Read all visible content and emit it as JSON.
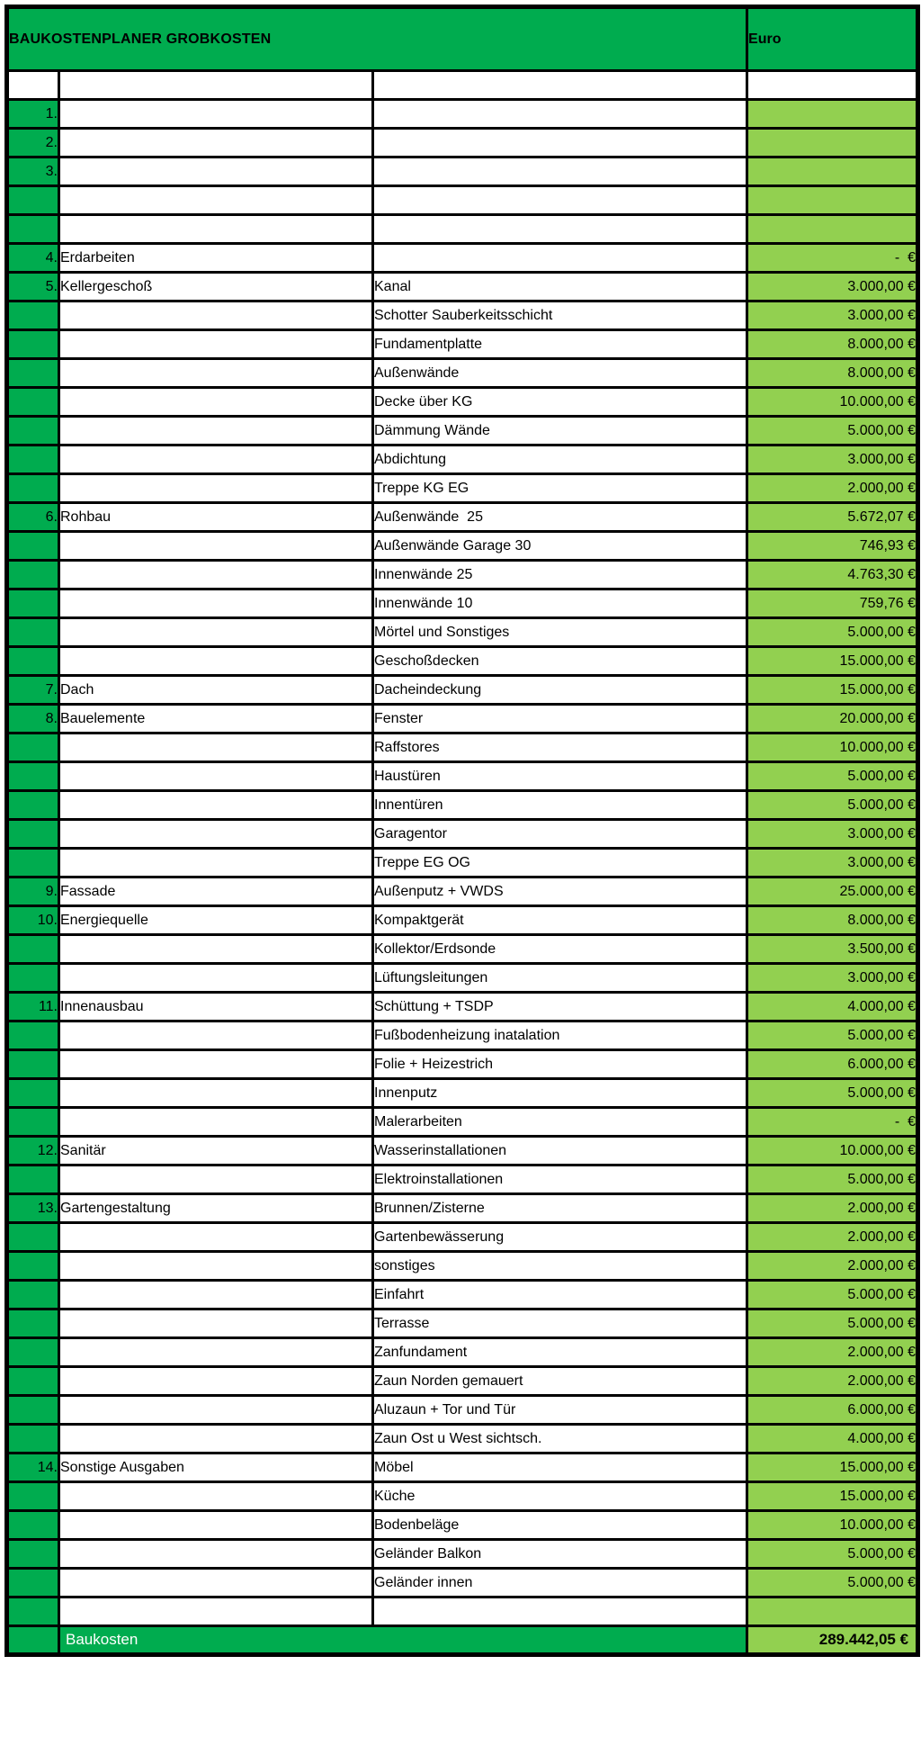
{
  "header": {
    "title": "BAUKOSTENPLANER GROBKOSTEN",
    "currency_label": "Euro"
  },
  "colors": {
    "dark_green": "#00ac4f",
    "light_green": "#92d050",
    "border": "#000000",
    "header_text": "#ffffff",
    "body_text": "#000000"
  },
  "rows": [
    {
      "num": "",
      "category": "",
      "item": "",
      "value": "",
      "white_num": true,
      "white_value": true
    },
    {
      "num": "1.",
      "category": "",
      "item": "",
      "value": ""
    },
    {
      "num": "2.",
      "category": "",
      "item": "",
      "value": ""
    },
    {
      "num": "3.",
      "category": "",
      "item": "",
      "value": ""
    },
    {
      "num": "",
      "category": "",
      "item": "",
      "value": ""
    },
    {
      "num": "",
      "category": "",
      "item": "",
      "value": ""
    },
    {
      "num": "4.",
      "category": "Erdarbeiten",
      "item": "",
      "value": "-  €"
    },
    {
      "num": "5.",
      "category": "Kellergeschoß",
      "item": "Kanal",
      "value": "3.000,00 €"
    },
    {
      "num": "",
      "category": "",
      "item": "Schotter Sauberkeitsschicht",
      "value": "3.000,00 €"
    },
    {
      "num": "",
      "category": "",
      "item": "Fundamentplatte",
      "value": "8.000,00 €"
    },
    {
      "num": "",
      "category": "",
      "item": "Außenwände",
      "value": "8.000,00 €"
    },
    {
      "num": "",
      "category": "",
      "item": "Decke über KG",
      "value": "10.000,00 €"
    },
    {
      "num": "",
      "category": "",
      "item": "Dämmung Wände",
      "value": "5.000,00 €"
    },
    {
      "num": "",
      "category": "",
      "item": "Abdichtung",
      "value": "3.000,00 €"
    },
    {
      "num": "",
      "category": "",
      "item": "Treppe KG EG",
      "value": "2.000,00 €"
    },
    {
      "num": "6.",
      "category": "Rohbau",
      "item": "Außenwände  25",
      "value": "5.672,07 €"
    },
    {
      "num": "",
      "category": "",
      "item": "Außenwände Garage 30",
      "value": "746,93 €"
    },
    {
      "num": "",
      "category": "",
      "item": "Innenwände 25",
      "value": "4.763,30 €"
    },
    {
      "num": "",
      "category": "",
      "item": "Innenwände 10",
      "value": "759,76 €"
    },
    {
      "num": "",
      "category": "",
      "item": "Mörtel und Sonstiges",
      "value": "5.000,00 €"
    },
    {
      "num": "",
      "category": "",
      "item": "Geschoßdecken",
      "value": "15.000,00 €"
    },
    {
      "num": "7.",
      "category": "Dach",
      "item": "Dacheindeckung",
      "value": "15.000,00 €"
    },
    {
      "num": "8.",
      "category": "Bauelemente",
      "item": "Fenster",
      "value": "20.000,00 €"
    },
    {
      "num": "",
      "category": "",
      "item": "Raffstores",
      "value": "10.000,00 €"
    },
    {
      "num": "",
      "category": "",
      "item": "Haustüren",
      "value": "5.000,00 €"
    },
    {
      "num": "",
      "category": "",
      "item": "Innentüren",
      "value": "5.000,00 €"
    },
    {
      "num": "",
      "category": "",
      "item": "Garagentor",
      "value": "3.000,00 €"
    },
    {
      "num": "",
      "category": "",
      "item": "Treppe EG OG",
      "value": "3.000,00 €"
    },
    {
      "num": "9.",
      "category": "Fassade",
      "item": "Außenputz + VWDS",
      "value": "25.000,00 €"
    },
    {
      "num": "10.",
      "category": "Energiequelle",
      "item": "Kompaktgerät",
      "value": "8.000,00 €"
    },
    {
      "num": "",
      "category": "",
      "item": "Kollektor/Erdsonde",
      "value": "3.500,00 €"
    },
    {
      "num": "",
      "category": "",
      "item": "Lüftungsleitungen",
      "value": "3.000,00 €"
    },
    {
      "num": "11.",
      "category": "Innenausbau",
      "item": "Schüttung + TSDP",
      "value": "4.000,00 €",
      "merge_item_below": true
    },
    {
      "num": "",
      "category": "",
      "item": "Fußbodenheizung inatalation",
      "value": "5.000,00 €"
    },
    {
      "num": "",
      "category": "",
      "item": "Folie + Heizestrich",
      "value": "6.000,00 €"
    },
    {
      "num": "",
      "category": "",
      "item": "Innenputz",
      "value": "5.000,00 €"
    },
    {
      "num": "",
      "category": "",
      "item": "Malerarbeiten",
      "value": "-  €"
    },
    {
      "num": "12.",
      "category": "Sanitär",
      "item": "Wasserinstallationen",
      "value": "10.000,00 €"
    },
    {
      "num": "",
      "category": "",
      "item": "Elektroinstallationen",
      "value": "5.000,00 €"
    },
    {
      "num": "13.",
      "category": "Gartengestaltung",
      "item": "Brunnen/Zisterne",
      "value": "2.000,00 €"
    },
    {
      "num": "",
      "category": "",
      "item": "Gartenbewässerung",
      "value": "2.000,00 €"
    },
    {
      "num": "",
      "category": "",
      "item": "sonstiges",
      "value": "2.000,00 €"
    },
    {
      "num": "",
      "category": "",
      "item": "Einfahrt",
      "value": "5.000,00 €"
    },
    {
      "num": "",
      "category": "",
      "item": "Terrasse",
      "value": "5.000,00 €"
    },
    {
      "num": "",
      "category": "",
      "item": "Zanfundament",
      "value": "2.000,00 €"
    },
    {
      "num": "",
      "category": "",
      "item": "Zaun Norden gemauert",
      "value": "2.000,00 €"
    },
    {
      "num": "",
      "category": "",
      "item": "Aluzaun + Tor und Tür",
      "value": "6.000,00 €"
    },
    {
      "num": "",
      "category": "",
      "item": "Zaun Ost u West sichtsch.",
      "value": "4.000,00 €"
    },
    {
      "num": "14.",
      "category": "Sonstige Ausgaben",
      "item": "Möbel",
      "value": "15.000,00 €"
    },
    {
      "num": "",
      "category": "",
      "item": "Küche",
      "value": "15.000,00 €"
    },
    {
      "num": "",
      "category": "",
      "item": "Bodenbeläge",
      "value": "10.000,00 €"
    },
    {
      "num": "",
      "category": "",
      "item": "Geländer Balkon",
      "value": "5.000,00 €"
    },
    {
      "num": "",
      "category": "",
      "item": "Geländer innen",
      "value": "5.000,00 €"
    },
    {
      "num": "",
      "category": "",
      "item": "",
      "value": ""
    }
  ],
  "total": {
    "label": "Baukosten",
    "value": "289.442,05 €"
  }
}
